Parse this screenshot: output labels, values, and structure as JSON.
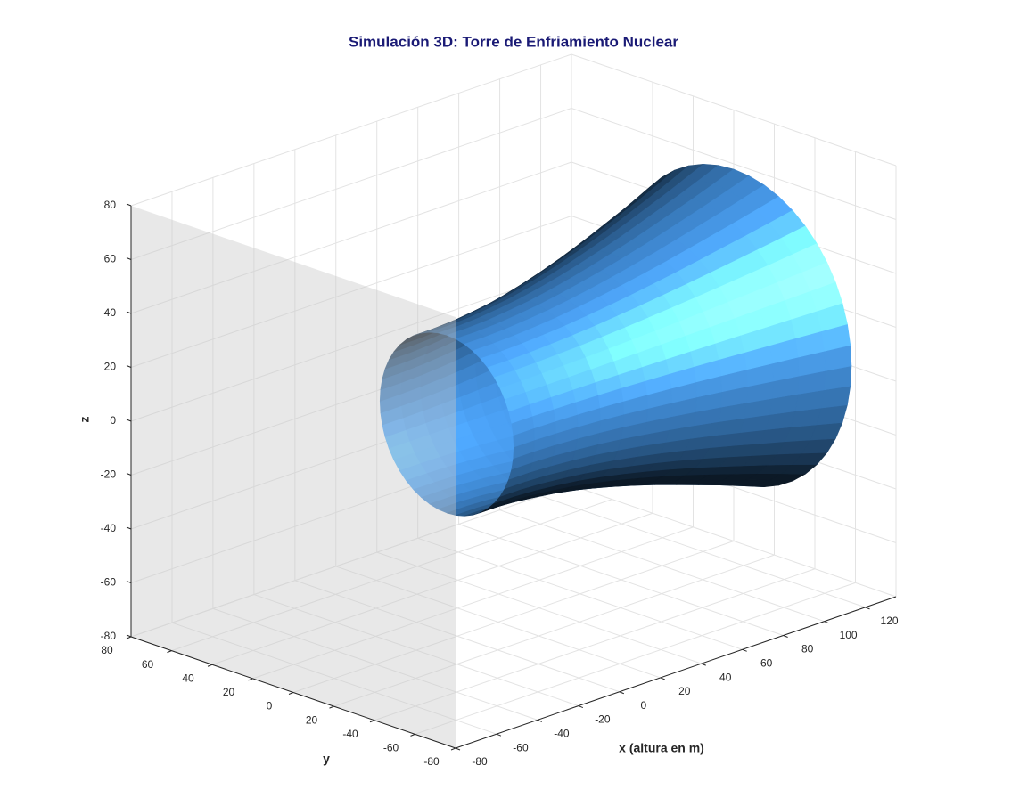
{
  "chart_data": {
    "type": "surface3d",
    "title": "Simulación 3D: Torre de Enfriamiento Nuclear",
    "xlabel": "x (altura en m)",
    "ylabel": "y",
    "zlabel": "z",
    "xlim": [
      -80,
      135
    ],
    "ylim": [
      -80,
      80
    ],
    "zlim": [
      -80,
      80
    ],
    "xticks": [
      -80,
      -60,
      -40,
      -20,
      0,
      20,
      40,
      60,
      80,
      100,
      120
    ],
    "yticks": [
      -80,
      -60,
      -40,
      -20,
      0,
      20,
      40,
      60,
      80
    ],
    "zticks": [
      -80,
      -60,
      -40,
      -20,
      0,
      20,
      40,
      60,
      80
    ],
    "grid": true,
    "color": "#4da6ff",
    "surface": {
      "x": [
        -5,
        5,
        15,
        25,
        35,
        45,
        55,
        65,
        75,
        85,
        95,
        105,
        115,
        125,
        135
      ],
      "radius": [
        33.0,
        33.0,
        33.4,
        34.2,
        35.2,
        36.6,
        38.3,
        40.2,
        42.3,
        44.6,
        47.1,
        49.7,
        52.3,
        55.1,
        58.0
      ]
    }
  }
}
